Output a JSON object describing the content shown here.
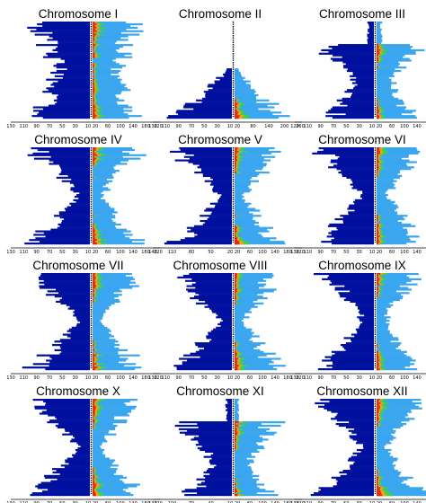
{
  "colors": {
    "left": "#00109e",
    "right": "#3aa6ef",
    "green": "#3cd150",
    "red": "#e8280e",
    "orange": "#f4a018",
    "axis": "#000000"
  },
  "chart_data": [
    {
      "type": "bar",
      "title": "Chromosome I",
      "shape": "flat",
      "left_ticks": [
        "130",
        "110",
        "90",
        "70",
        "50",
        "30",
        "10"
      ],
      "right_ticks": [
        "20",
        "60",
        "100",
        "140",
        "180",
        "220"
      ]
    },
    {
      "type": "bar",
      "title": "Chromosome II",
      "shape": "tri",
      "left_ticks": [
        "130",
        "110",
        "90",
        "70",
        "50",
        "30",
        "10"
      ],
      "right_ticks": [
        "20",
        "80",
        "140",
        "200",
        "260"
      ]
    },
    {
      "type": "bar",
      "title": "Chromosome III",
      "shape": "bot",
      "left_ticks": [
        "120",
        "110",
        "90",
        "70",
        "50",
        "30",
        "10"
      ],
      "right_ticks": [
        "20",
        "60",
        "100",
        "140",
        "180",
        "220"
      ]
    },
    {
      "type": "bar",
      "title": "Chromosome IV",
      "shape": "hour",
      "left_ticks": [
        "130",
        "110",
        "90",
        "70",
        "50",
        "30",
        "10"
      ],
      "right_ticks": [
        "20",
        "60",
        "100",
        "140",
        "180",
        "220"
      ]
    },
    {
      "type": "bar",
      "title": "Chromosome V",
      "shape": "hour",
      "left_ticks": [
        "140",
        "110",
        "80",
        "50",
        "20"
      ],
      "right_ticks": [
        "20",
        "60",
        "100",
        "140",
        "180",
        "220"
      ]
    },
    {
      "type": "bar",
      "title": "Chromosome VI",
      "shape": "hour",
      "left_ticks": [
        "130",
        "110",
        "90",
        "70",
        "50",
        "30",
        "10"
      ],
      "right_ticks": [
        "20",
        "60",
        "100",
        "140",
        "180",
        "220"
      ]
    },
    {
      "type": "bar",
      "title": "Chromosome VII",
      "shape": "hour",
      "left_ticks": [
        "130",
        "110",
        "90",
        "70",
        "50",
        "30",
        "10"
      ],
      "right_ticks": [
        "20",
        "60",
        "100",
        "140",
        "180",
        "220"
      ]
    },
    {
      "type": "bar",
      "title": "Chromosome VIII",
      "shape": "hour",
      "left_ticks": [
        "130",
        "110",
        "90",
        "70",
        "50",
        "30",
        "10"
      ],
      "right_ticks": [
        "20",
        "60",
        "100",
        "140",
        "180",
        "220"
      ]
    },
    {
      "type": "bar",
      "title": "Chromosome IX",
      "shape": "topb",
      "left_ticks": [
        "130",
        "110",
        "90",
        "70",
        "50",
        "30",
        "10"
      ],
      "right_ticks": [
        "20",
        "60",
        "100",
        "140",
        "180",
        "220"
      ]
    },
    {
      "type": "bar",
      "title": "Chromosome X",
      "shape": "hour",
      "left_ticks": [
        "130",
        "110",
        "90",
        "70",
        "50",
        "30",
        "10"
      ],
      "right_ticks": [
        "20",
        "60",
        "100",
        "140",
        "180",
        "220"
      ]
    },
    {
      "type": "bar",
      "title": "Chromosome XI",
      "shape": "bot",
      "left_ticks": [
        "130",
        "100",
        "70",
        "40",
        "10"
      ],
      "right_ticks": [
        "20",
        "60",
        "100",
        "140",
        "180",
        "220"
      ]
    },
    {
      "type": "bar",
      "title": "Chromosome XII",
      "shape": "hour",
      "left_ticks": [
        "130",
        "110",
        "90",
        "70",
        "50",
        "30",
        "10"
      ],
      "right_ticks": [
        "20",
        "60",
        "100",
        "140",
        "180",
        "220"
      ]
    }
  ]
}
